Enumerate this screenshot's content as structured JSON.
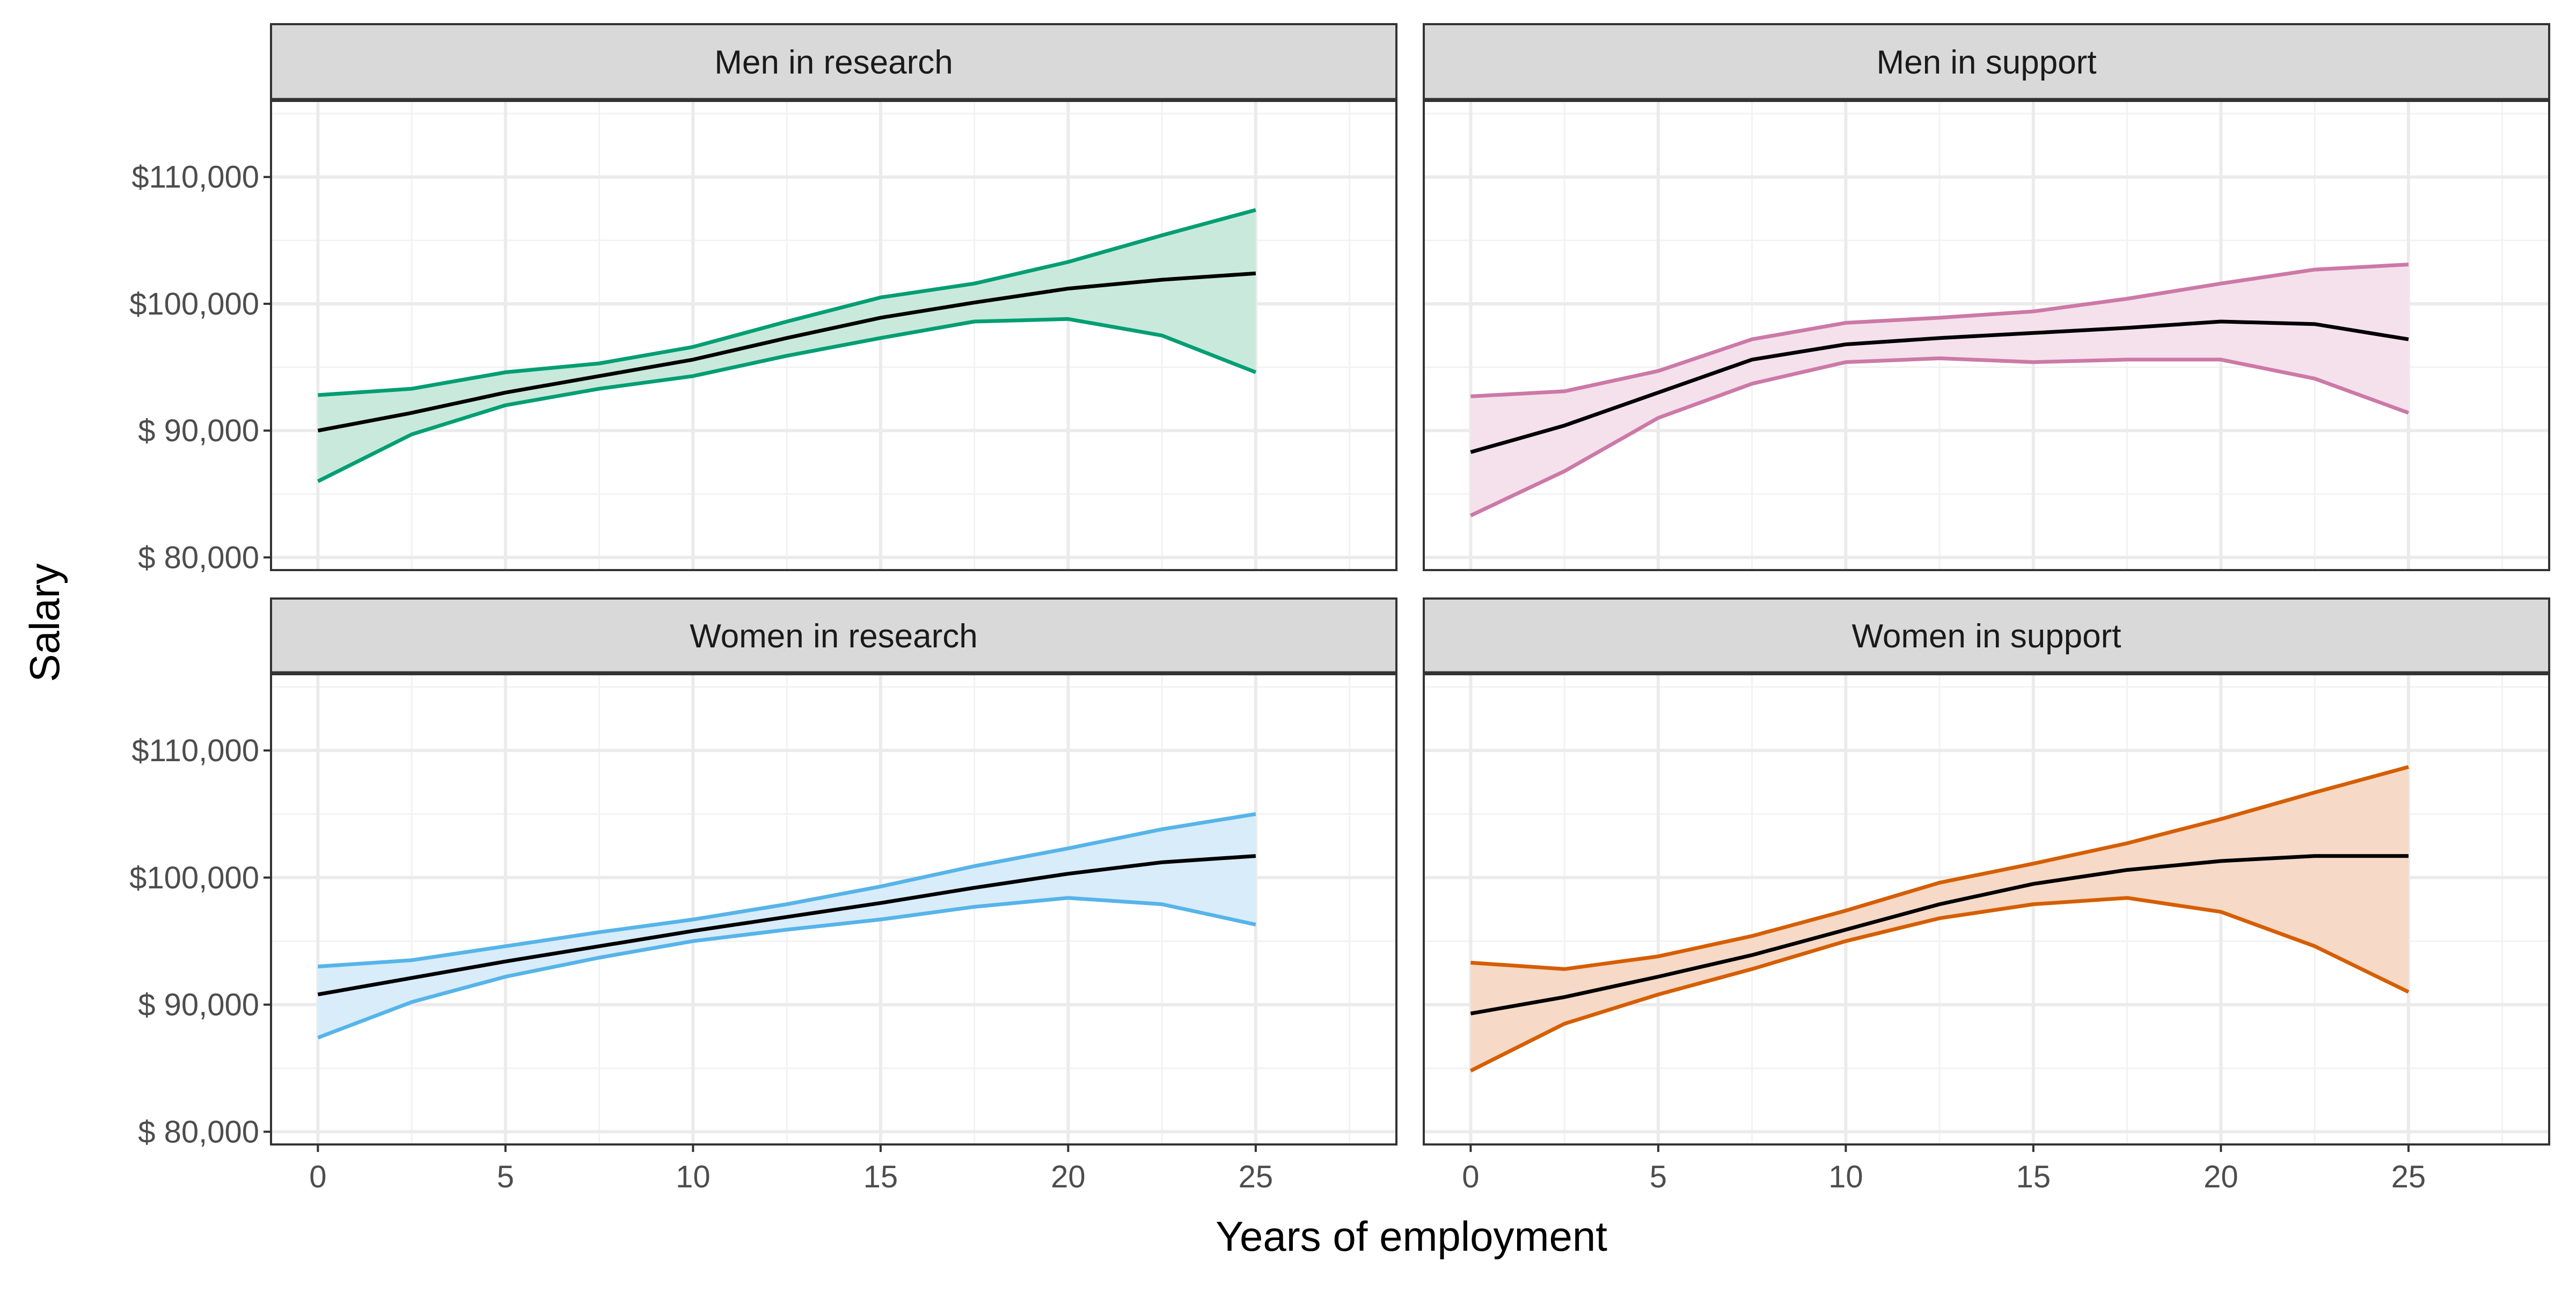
{
  "chart_data": {
    "type": "line",
    "title": "",
    "xlabel": "Years of employment",
    "ylabel": "Salary",
    "xlim": [
      -1.25,
      28.75
    ],
    "ylim": [
      79000,
      116000
    ],
    "x_ticks": [
      0,
      5,
      10,
      15,
      20,
      25
    ],
    "x_tick_labels": [
      "0",
      "5",
      "10",
      "15",
      "20",
      "25"
    ],
    "y_ticks": [
      80000,
      90000,
      100000,
      110000
    ],
    "y_tick_labels": [
      "$ 80,000",
      "$ 90,000",
      "$100,000",
      "$110,000"
    ],
    "grid": true,
    "legend": "none",
    "x": [
      0,
      2.5,
      5,
      7.5,
      10,
      12.5,
      15,
      17.5,
      20,
      22.5,
      25
    ],
    "panels": [
      {
        "name": "Men in research",
        "color": "#009E73",
        "fill": "#c9e9dc",
        "fit": [
          90000,
          91400,
          93000,
          94300,
          95600,
          97300,
          98900,
          100100,
          101200,
          101900,
          102400
        ],
        "lower": [
          86000,
          89700,
          92000,
          93300,
          94300,
          95900,
          97300,
          98600,
          98800,
          97500,
          94600
        ],
        "upper": [
          92800,
          93300,
          94600,
          95300,
          96600,
          98600,
          100500,
          101600,
          103300,
          105400,
          107400
        ]
      },
      {
        "name": "Men in support",
        "color": "#CC79A7",
        "fill": "#f4e1ec",
        "fit": [
          88300,
          90400,
          93000,
          95600,
          96800,
          97300,
          97700,
          98100,
          98600,
          98400,
          97200
        ],
        "lower": [
          83300,
          86800,
          91000,
          93700,
          95400,
          95700,
          95400,
          95600,
          95600,
          94100,
          91400
        ],
        "upper": [
          92700,
          93100,
          94700,
          97200,
          98500,
          98900,
          99400,
          100400,
          101600,
          102700,
          103100
        ]
      },
      {
        "name": "Women in research",
        "color": "#56B4E9",
        "fill": "#d8ecfa",
        "fit": [
          90800,
          92100,
          93400,
          94600,
          95800,
          96900,
          98000,
          99200,
          100300,
          101200,
          101700
        ],
        "lower": [
          87400,
          90200,
          92200,
          93700,
          95000,
          95900,
          96700,
          97700,
          98400,
          97900,
          96300
        ],
        "upper": [
          93000,
          93500,
          94600,
          95700,
          96700,
          97900,
          99300,
          100900,
          102300,
          103800,
          105000
        ]
      },
      {
        "name": "Women in support",
        "color": "#D55E00",
        "fill": "#f6d9c6",
        "fit": [
          89300,
          90600,
          92200,
          93900,
          95900,
          97900,
          99500,
          100600,
          101300,
          101700,
          101700
        ],
        "lower": [
          84800,
          88500,
          90800,
          92800,
          95000,
          96800,
          97900,
          98400,
          97300,
          94600,
          91000
        ],
        "upper": [
          93300,
          92800,
          93800,
          95400,
          97400,
          99600,
          101100,
          102700,
          104600,
          106700,
          108700
        ]
      }
    ]
  }
}
